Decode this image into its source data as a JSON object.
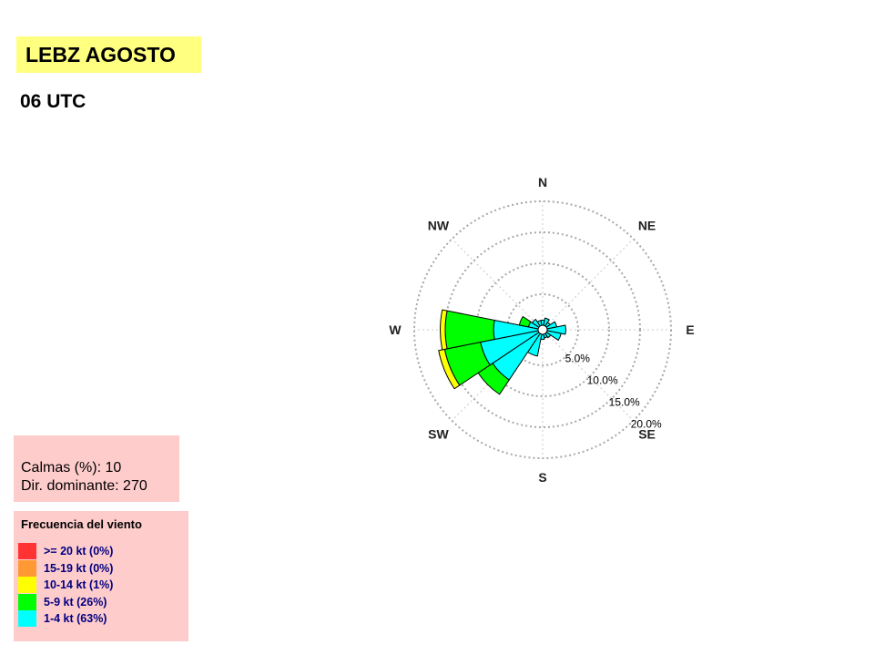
{
  "header": {
    "title": "LEBZ AGOSTO",
    "subtitle": "06 UTC"
  },
  "stats": {
    "calms_line": "Calmas (%): 10",
    "dominant_line": "Dir. dominante:  270"
  },
  "legend": {
    "title": "Frecuencia del viento",
    "items": [
      {
        "label": ">= 20 kt (0%)",
        "color": "#ff3333"
      },
      {
        "label": "15-19 kt (0%)",
        "color": "#ff9933"
      },
      {
        "label": "10-14 kt (1%)",
        "color": "#ffff00"
      },
      {
        "label": "5-9 kt (26%)",
        "color": "#00ff00"
      },
      {
        "label": "1-4 kt (63%)",
        "color": "#00ffff"
      }
    ]
  },
  "chart_data": {
    "type": "wind-rose",
    "sector_width_deg": 22.5,
    "grid": true,
    "radial_max": 20,
    "rings": [
      {
        "value": 5,
        "label": "5.0%"
      },
      {
        "value": 10,
        "label": "10.0%"
      },
      {
        "value": 15,
        "label": "15.0%"
      },
      {
        "value": 20,
        "label": "20.0%"
      }
    ],
    "directions": [
      "N",
      "NE",
      "E",
      "SE",
      "S",
      "SW",
      "W",
      "NW"
    ],
    "series": [
      {
        "name": "1-4 kt",
        "color": "#00ffff"
      },
      {
        "name": "5-9 kt",
        "color": "#00ff00"
      },
      {
        "name": "10-14 kt",
        "color": "#ffff00"
      },
      {
        "name": "15-19 kt",
        "color": "#ff9933"
      },
      {
        "name": ">= 20 kt",
        "color": "#ff3333"
      }
    ],
    "sectors": [
      {
        "dir": 0,
        "cum": [
          0.8,
          0.8,
          0.8,
          0.8,
          0.8
        ]
      },
      {
        "dir": 22.5,
        "cum": [
          1.2,
          1.2,
          1.2,
          1.2,
          1.2
        ]
      },
      {
        "dir": 45,
        "cum": [
          0.7,
          0.7,
          0.7,
          0.7,
          0.7
        ]
      },
      {
        "dir": 67.5,
        "cum": [
          1.6,
          1.6,
          1.6,
          1.6,
          1.6
        ]
      },
      {
        "dir": 90,
        "cum": [
          3.0,
          3.0,
          3.0,
          3.0,
          3.0
        ]
      },
      {
        "dir": 112.5,
        "cum": [
          2.3,
          2.3,
          2.3,
          2.3,
          2.3
        ]
      },
      {
        "dir": 135,
        "cum": [
          0.8,
          0.8,
          0.8,
          0.8,
          0.8
        ]
      },
      {
        "dir": 157.5,
        "cum": [
          0.6,
          0.6,
          0.6,
          0.6,
          0.6
        ]
      },
      {
        "dir": 180,
        "cum": [
          0.8,
          0.8,
          0.8,
          0.8,
          0.8
        ]
      },
      {
        "dir": 202.5,
        "cum": [
          3.6,
          3.6,
          3.6,
          3.6,
          3.6
        ]
      },
      {
        "dir": 225,
        "cum": [
          9.0,
          11.8,
          11.8,
          11.8,
          11.8
        ]
      },
      {
        "dir": 247.5,
        "cum": [
          9.5,
          15.4,
          16.4,
          16.4,
          16.4
        ]
      },
      {
        "dir": 270,
        "cum": [
          7.2,
          15.0,
          15.8,
          15.8,
          15.8
        ]
      },
      {
        "dir": 292.5,
        "cum": [
          1.6,
          3.1,
          3.1,
          3.1,
          3.1
        ]
      },
      {
        "dir": 315,
        "cum": [
          1.3,
          1.3,
          1.3,
          1.3,
          1.3
        ]
      },
      {
        "dir": 337.5,
        "cum": [
          0.8,
          0.8,
          0.8,
          0.8,
          0.8
        ]
      }
    ]
  }
}
